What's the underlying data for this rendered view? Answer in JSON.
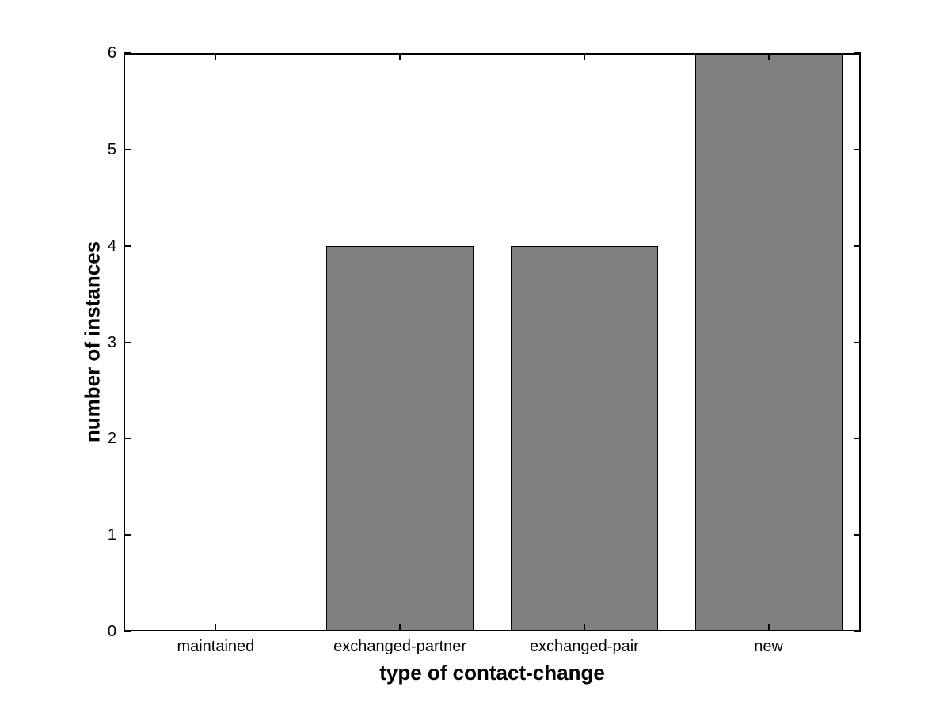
{
  "figure": {
    "background": "#ffffff"
  },
  "chart_data": {
    "type": "bar",
    "categories": [
      "maintained",
      "exchanged-partner",
      "exchanged-pair",
      "new"
    ],
    "values": [
      0,
      4,
      4,
      6
    ],
    "title": "",
    "xlabel": "type of contact-change",
    "ylabel": "number of instances",
    "ylim": [
      0,
      6
    ],
    "yticks": [
      0,
      1,
      2,
      3,
      4,
      5,
      6
    ],
    "grid": false,
    "legend": "none",
    "bar_color": "#808080",
    "bar_edge_color": "#000000",
    "axis_color": "#000000",
    "bar_width_fraction": 0.8
  }
}
